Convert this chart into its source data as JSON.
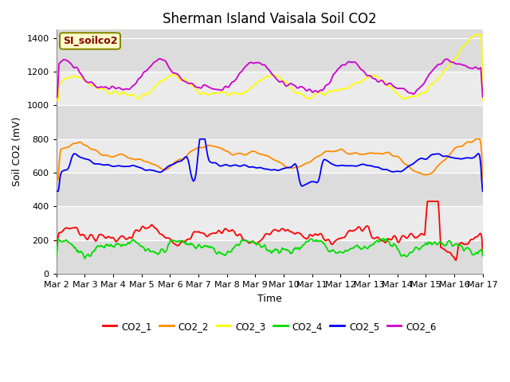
{
  "title": "Sherman Island Vaisala Soil CO2",
  "ylabel": "Soil CO2 (mV)",
  "xlabel": "Time",
  "legend_label": "SI_soilco2",
  "series_names": [
    "CO2_1",
    "CO2_2",
    "CO2_3",
    "CO2_4",
    "CO2_5",
    "CO2_6"
  ],
  "series_colors": [
    "#ff0000",
    "#ff8c00",
    "#ffff00",
    "#00dd00",
    "#0000ff",
    "#cc00cc"
  ],
  "ylim": [
    0,
    1450
  ],
  "yticks": [
    0,
    200,
    400,
    600,
    800,
    1000,
    1200,
    1400
  ],
  "xtick_labels": [
    "Mar 2",
    "Mar 3",
    "Mar 4",
    "Mar 5",
    "Mar 6",
    "Mar 7",
    "Mar 8",
    "Mar 9",
    "Mar 10",
    "Mar 11",
    "Mar 12",
    "Mar 13",
    "Mar 14",
    "Mar 15",
    "Mar 16",
    "Mar 17"
  ],
  "bands": [
    [
      0,
      200,
      "#dcdcdc"
    ],
    [
      200,
      400,
      "#ebebeb"
    ],
    [
      400,
      600,
      "#dcdcdc"
    ],
    [
      600,
      800,
      "#ebebeb"
    ],
    [
      800,
      1000,
      "#dcdcdc"
    ],
    [
      1000,
      1200,
      "#ebebeb"
    ],
    [
      1200,
      1450,
      "#dcdcdc"
    ]
  ],
  "linewidth": 1.3,
  "title_fontsize": 12,
  "axis_label_fontsize": 9,
  "tick_fontsize": 8,
  "legend_box_facecolor": "#ffffcc",
  "legend_box_edgecolor": "#888800",
  "legend_text_color": "#880000",
  "fig_facecolor": "#ffffff",
  "n_points": 480
}
